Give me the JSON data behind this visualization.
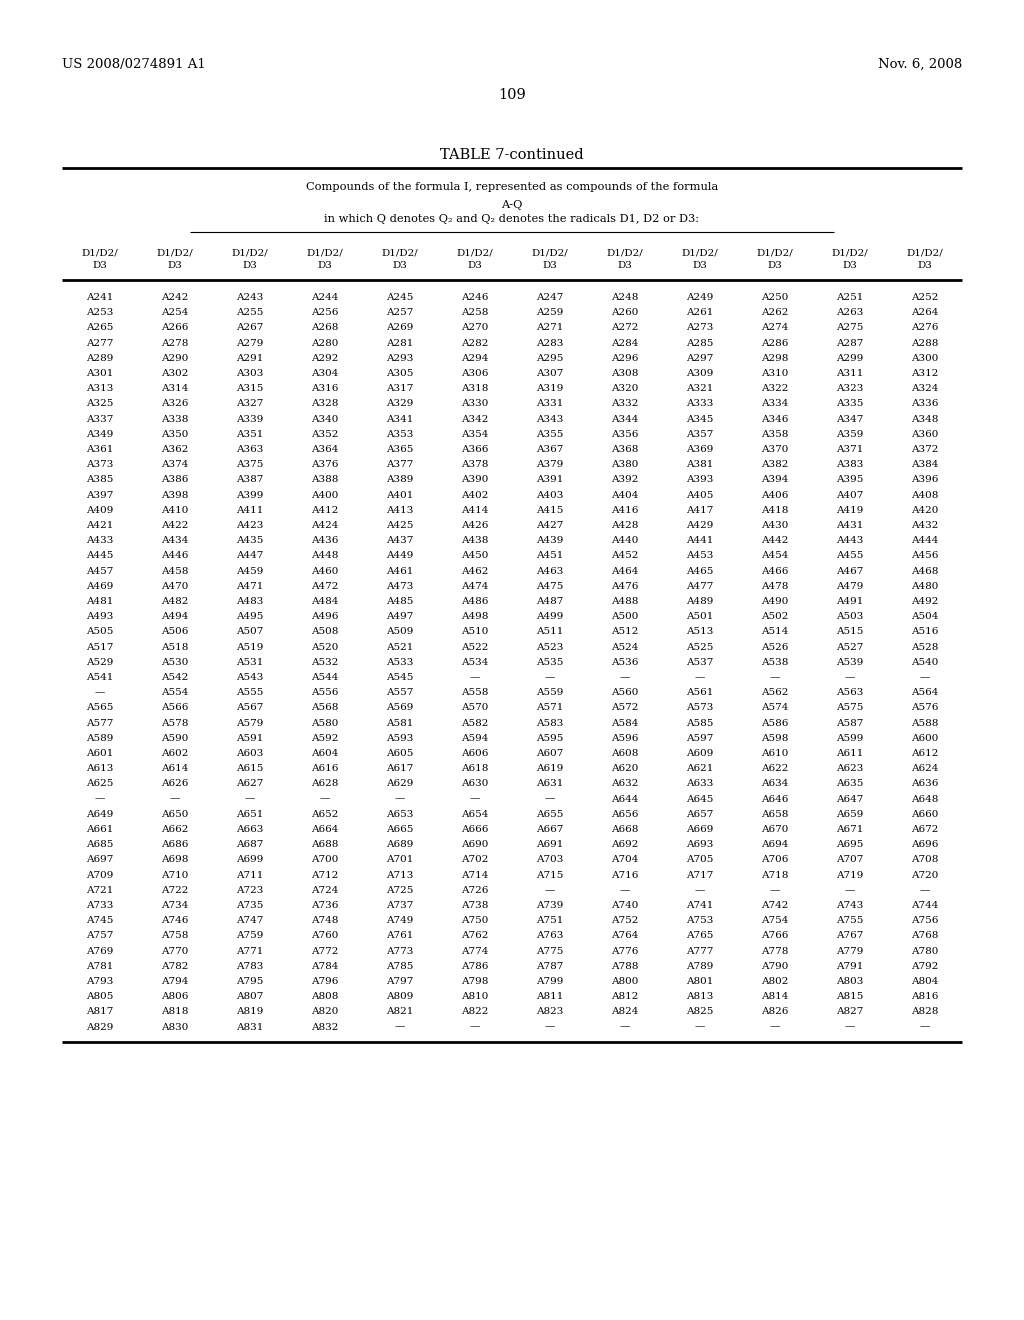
{
  "header_left": "US 2008/0274891 A1",
  "header_right": "Nov. 6, 2008",
  "page_number": "109",
  "table_title": "TABLE 7-continued",
  "table_subtitle1": "Compounds of the formula I, represented as compounds of the formula",
  "table_subtitle2": "A-Q",
  "table_subtitle3": "in which Q denotes Q₂ and Q₂ denotes the radicals D1, D2 or D3:",
  "num_cols": 12,
  "table_rows": [
    [
      "A241",
      "A242",
      "A243",
      "A244",
      "A245",
      "A246",
      "A247",
      "A248",
      "A249",
      "A250",
      "A251",
      "A252"
    ],
    [
      "A253",
      "A254",
      "A255",
      "A256",
      "A257",
      "A258",
      "A259",
      "A260",
      "A261",
      "A262",
      "A263",
      "A264"
    ],
    [
      "A265",
      "A266",
      "A267",
      "A268",
      "A269",
      "A270",
      "A271",
      "A272",
      "A273",
      "A274",
      "A275",
      "A276"
    ],
    [
      "A277",
      "A278",
      "A279",
      "A280",
      "A281",
      "A282",
      "A283",
      "A284",
      "A285",
      "A286",
      "A287",
      "A288"
    ],
    [
      "A289",
      "A290",
      "A291",
      "A292",
      "A293",
      "A294",
      "A295",
      "A296",
      "A297",
      "A298",
      "A299",
      "A300"
    ],
    [
      "A301",
      "A302",
      "A303",
      "A304",
      "A305",
      "A306",
      "A307",
      "A308",
      "A309",
      "A310",
      "A311",
      "A312"
    ],
    [
      "A313",
      "A314",
      "A315",
      "A316",
      "A317",
      "A318",
      "A319",
      "A320",
      "A321",
      "A322",
      "A323",
      "A324"
    ],
    [
      "A325",
      "A326",
      "A327",
      "A328",
      "A329",
      "A330",
      "A331",
      "A332",
      "A333",
      "A334",
      "A335",
      "A336"
    ],
    [
      "A337",
      "A338",
      "A339",
      "A340",
      "A341",
      "A342",
      "A343",
      "A344",
      "A345",
      "A346",
      "A347",
      "A348"
    ],
    [
      "A349",
      "A350",
      "A351",
      "A352",
      "A353",
      "A354",
      "A355",
      "A356",
      "A357",
      "A358",
      "A359",
      "A360"
    ],
    [
      "A361",
      "A362",
      "A363",
      "A364",
      "A365",
      "A366",
      "A367",
      "A368",
      "A369",
      "A370",
      "A371",
      "A372"
    ],
    [
      "A373",
      "A374",
      "A375",
      "A376",
      "A377",
      "A378",
      "A379",
      "A380",
      "A381",
      "A382",
      "A383",
      "A384"
    ],
    [
      "A385",
      "A386",
      "A387",
      "A388",
      "A389",
      "A390",
      "A391",
      "A392",
      "A393",
      "A394",
      "A395",
      "A396"
    ],
    [
      "A397",
      "A398",
      "A399",
      "A400",
      "A401",
      "A402",
      "A403",
      "A404",
      "A405",
      "A406",
      "A407",
      "A408"
    ],
    [
      "A409",
      "A410",
      "A411",
      "A412",
      "A413",
      "A414",
      "A415",
      "A416",
      "A417",
      "A418",
      "A419",
      "A420"
    ],
    [
      "A421",
      "A422",
      "A423",
      "A424",
      "A425",
      "A426",
      "A427",
      "A428",
      "A429",
      "A430",
      "A431",
      "A432"
    ],
    [
      "A433",
      "A434",
      "A435",
      "A436",
      "A437",
      "A438",
      "A439",
      "A440",
      "A441",
      "A442",
      "A443",
      "A444"
    ],
    [
      "A445",
      "A446",
      "A447",
      "A448",
      "A449",
      "A450",
      "A451",
      "A452",
      "A453",
      "A454",
      "A455",
      "A456"
    ],
    [
      "A457",
      "A458",
      "A459",
      "A460",
      "A461",
      "A462",
      "A463",
      "A464",
      "A465",
      "A466",
      "A467",
      "A468"
    ],
    [
      "A469",
      "A470",
      "A471",
      "A472",
      "A473",
      "A474",
      "A475",
      "A476",
      "A477",
      "A478",
      "A479",
      "A480"
    ],
    [
      "A481",
      "A482",
      "A483",
      "A484",
      "A485",
      "A486",
      "A487",
      "A488",
      "A489",
      "A490",
      "A491",
      "A492"
    ],
    [
      "A493",
      "A494",
      "A495",
      "A496",
      "A497",
      "A498",
      "A499",
      "A500",
      "A501",
      "A502",
      "A503",
      "A504"
    ],
    [
      "A505",
      "A506",
      "A507",
      "A508",
      "A509",
      "A510",
      "A511",
      "A512",
      "A513",
      "A514",
      "A515",
      "A516"
    ],
    [
      "A517",
      "A518",
      "A519",
      "A520",
      "A521",
      "A522",
      "A523",
      "A524",
      "A525",
      "A526",
      "A527",
      "A528"
    ],
    [
      "A529",
      "A530",
      "A531",
      "A532",
      "A533",
      "A534",
      "A535",
      "A536",
      "A537",
      "A538",
      "A539",
      "A540"
    ],
    [
      "A541",
      "A542",
      "A543",
      "A544",
      "A545",
      "—",
      "—",
      "—",
      "—",
      "—",
      "—",
      "—"
    ],
    [
      "—",
      "A554",
      "A555",
      "A556",
      "A557",
      "A558",
      "A559",
      "A560",
      "A561",
      "A562",
      "A563",
      "A564"
    ],
    [
      "A565",
      "A566",
      "A567",
      "A568",
      "A569",
      "A570",
      "A571",
      "A572",
      "A573",
      "A574",
      "A575",
      "A576"
    ],
    [
      "A577",
      "A578",
      "A579",
      "A580",
      "A581",
      "A582",
      "A583",
      "A584",
      "A585",
      "A586",
      "A587",
      "A588"
    ],
    [
      "A589",
      "A590",
      "A591",
      "A592",
      "A593",
      "A594",
      "A595",
      "A596",
      "A597",
      "A598",
      "A599",
      "A600"
    ],
    [
      "A601",
      "A602",
      "A603",
      "A604",
      "A605",
      "A606",
      "A607",
      "A608",
      "A609",
      "A610",
      "A611",
      "A612"
    ],
    [
      "A613",
      "A614",
      "A615",
      "A616",
      "A617",
      "A618",
      "A619",
      "A620",
      "A621",
      "A622",
      "A623",
      "A624"
    ],
    [
      "A625",
      "A626",
      "A627",
      "A628",
      "A629",
      "A630",
      "A631",
      "A632",
      "A633",
      "A634",
      "A635",
      "A636"
    ],
    [
      "—",
      "—",
      "—",
      "—",
      "—",
      "—",
      "—",
      "A644",
      "A645",
      "A646",
      "A647",
      "A648"
    ],
    [
      "A649",
      "A650",
      "A651",
      "A652",
      "A653",
      "A654",
      "A655",
      "A656",
      "A657",
      "A658",
      "A659",
      "A660"
    ],
    [
      "A661",
      "A662",
      "A663",
      "A664",
      "A665",
      "A666",
      "A667",
      "A668",
      "A669",
      "A670",
      "A671",
      "A672"
    ],
    [
      "A685",
      "A686",
      "A687",
      "A688",
      "A689",
      "A690",
      "A691",
      "A692",
      "A693",
      "A694",
      "A695",
      "A696"
    ],
    [
      "A697",
      "A698",
      "A699",
      "A700",
      "A701",
      "A702",
      "A703",
      "A704",
      "A705",
      "A706",
      "A707",
      "A708"
    ],
    [
      "A709",
      "A710",
      "A711",
      "A712",
      "A713",
      "A714",
      "A715",
      "A716",
      "A717",
      "A718",
      "A719",
      "A720"
    ],
    [
      "A721",
      "A722",
      "A723",
      "A724",
      "A725",
      "A726",
      "—",
      "—",
      "—",
      "—",
      "—",
      "—"
    ],
    [
      "A733",
      "A734",
      "A735",
      "A736",
      "A737",
      "A738",
      "A739",
      "A740",
      "A741",
      "A742",
      "A743",
      "A744"
    ],
    [
      "A745",
      "A746",
      "A747",
      "A748",
      "A749",
      "A750",
      "A751",
      "A752",
      "A753",
      "A754",
      "A755",
      "A756"
    ],
    [
      "A757",
      "A758",
      "A759",
      "A760",
      "A761",
      "A762",
      "A763",
      "A764",
      "A765",
      "A766",
      "A767",
      "A768"
    ],
    [
      "A769",
      "A770",
      "A771",
      "A772",
      "A773",
      "A774",
      "A775",
      "A776",
      "A777",
      "A778",
      "A779",
      "A780"
    ],
    [
      "A781",
      "A782",
      "A783",
      "A784",
      "A785",
      "A786",
      "A787",
      "A788",
      "A789",
      "A790",
      "A791",
      "A792"
    ],
    [
      "A793",
      "A794",
      "A795",
      "A796",
      "A797",
      "A798",
      "A799",
      "A800",
      "A801",
      "A802",
      "A803",
      "A804"
    ],
    [
      "A805",
      "A806",
      "A807",
      "A808",
      "A809",
      "A810",
      "A811",
      "A812",
      "A813",
      "A814",
      "A815",
      "A816"
    ],
    [
      "A817",
      "A818",
      "A819",
      "A820",
      "A821",
      "A822",
      "A823",
      "A824",
      "A825",
      "A826",
      "A827",
      "A828"
    ],
    [
      "A829",
      "A830",
      "A831",
      "A832",
      "—",
      "—",
      "—",
      "—",
      "—",
      "—",
      "—",
      "—"
    ]
  ]
}
